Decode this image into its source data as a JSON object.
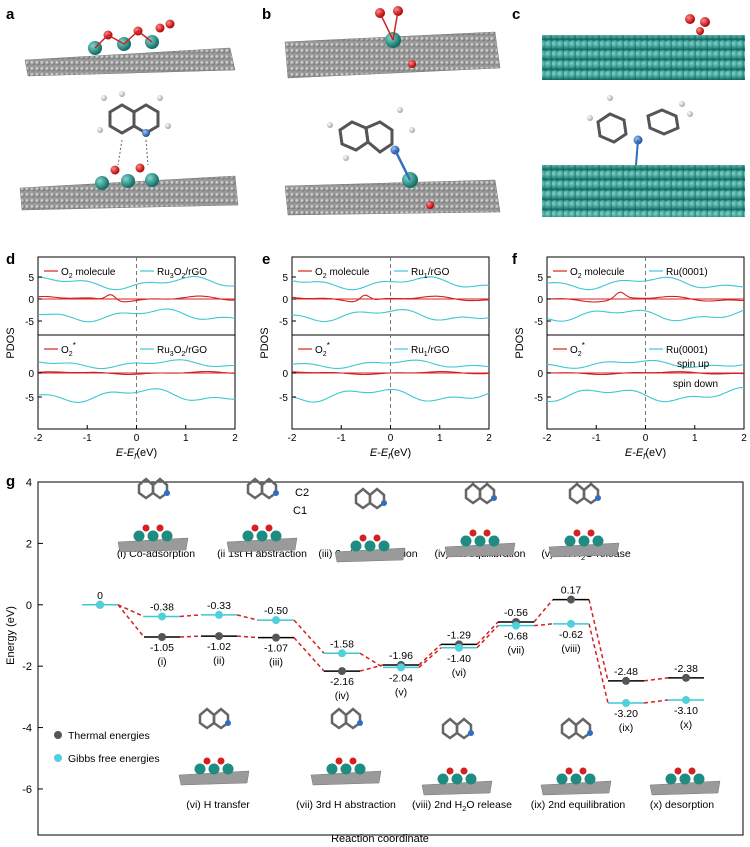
{
  "panel_labels": [
    "a",
    "b",
    "c",
    "d",
    "e",
    "f",
    "g"
  ],
  "colors": {
    "teal": "#1f8c82",
    "ru": "#1f8c82",
    "carbon": "#8c8c8c",
    "oxygen": "#d42020",
    "nitrogen": "#2f6fc0",
    "hydrogen": "#e8e8e8",
    "red_line": "#d42020",
    "cyan_line": "#3cc8d4",
    "thermal": "#555555",
    "gibbs": "#4fd0dc"
  },
  "pdos": [
    {
      "id": "d",
      "ylabel": "PDOS",
      "xlabel_main": "E-E",
      "xlabel_sub": "f",
      "xlabel_unit": "(eV)",
      "xticks": [
        "-2",
        "-1",
        "0",
        "1",
        "2"
      ],
      "yticks_top": [
        "5",
        "0",
        "-5"
      ],
      "yticks_bottom": [
        "0",
        "-5"
      ],
      "legend_top": {
        "red": "O",
        "red_sub": "2",
        "red_rest": " molecule",
        "cyan": "Ru",
        "cyan_sub1": "3",
        "cyan_mid": "O",
        "cyan_sub2": "2",
        "cyan_rest": "/rGO"
      },
      "legend_bottom": {
        "red": "O",
        "red_sub": "2",
        "red_sup": "*",
        "cyan": "Ru",
        "cyan_sub1": "3",
        "cyan_mid": "O",
        "cyan_sub2": "2",
        "cyan_rest": "/rGO"
      }
    },
    {
      "id": "e",
      "ylabel": "PDOS",
      "xlabel_main": "E-E",
      "xlabel_sub": "f",
      "xlabel_unit": "(eV)",
      "xticks": [
        "-2",
        "-1",
        "0",
        "1",
        "2"
      ],
      "yticks_top": [
        "5",
        "0",
        "-5"
      ],
      "yticks_bottom": [
        "0",
        "-5"
      ],
      "legend_top": {
        "red": "O",
        "red_sub": "2",
        "red_rest": " molecule",
        "cyan": "Ru",
        "cyan_sub1": "1",
        "cyan_mid": "",
        "cyan_sub2": "",
        "cyan_rest": "/rGO"
      },
      "legend_bottom": {
        "red": "O",
        "red_sub": "2",
        "red_sup": "*",
        "cyan": "Ru",
        "cyan_sub1": "1",
        "cyan_mid": "",
        "cyan_sub2": "",
        "cyan_rest": "/rGO"
      }
    },
    {
      "id": "f",
      "ylabel": "PDOS",
      "xlabel_main": "E-E",
      "xlabel_sub": "f",
      "xlabel_unit": "(eV)",
      "xticks": [
        "-2",
        "-1",
        "0",
        "1",
        "2"
      ],
      "yticks_top": [
        "5",
        "0",
        "-5"
      ],
      "yticks_bottom": [
        "0",
        "-5"
      ],
      "legend_top": {
        "red": "O",
        "red_sub": "2",
        "red_rest": " molecule",
        "cyan": "Ru(0001)",
        "cyan_sub1": "",
        "cyan_mid": "",
        "cyan_sub2": "",
        "cyan_rest": ""
      },
      "legend_bottom": {
        "red": "O",
        "red_sub": "2",
        "red_sup": "*",
        "cyan": "Ru(0001)",
        "cyan_sub1": "",
        "cyan_mid": "",
        "cyan_sub2": "",
        "cyan_rest": ""
      },
      "spin_labels": [
        "spin up",
        "spin down"
      ]
    }
  ],
  "chart_data": {
    "type": "line",
    "ylabel": "Energy (eV)",
    "xlabel": "Reaction coordinate",
    "ylim": [
      -7.5,
      4
    ],
    "yticks": [
      4,
      2,
      0,
      -2,
      -4,
      -6
    ],
    "states": [
      {
        "label": "",
        "thermal": 0,
        "gibbs": 0,
        "thermal_label": "0",
        "gibbs_label": ""
      },
      {
        "label": "(i)",
        "thermal": -1.05,
        "gibbs": -0.38,
        "thermal_label": "-1.05",
        "gibbs_label": "-0.38"
      },
      {
        "label": "(ii)",
        "thermal": -1.02,
        "gibbs": -0.33,
        "thermal_label": "-1.02",
        "gibbs_label": "-0.33"
      },
      {
        "label": "(iii)",
        "thermal": -1.07,
        "gibbs": -0.5,
        "thermal_label": "-1.07",
        "gibbs_label": "-0.50"
      },
      {
        "label": "(iv)",
        "thermal": -2.16,
        "gibbs": -1.58,
        "thermal_label": "-2.16",
        "gibbs_label": "-1.58"
      },
      {
        "label": "(v)",
        "thermal": -1.96,
        "gibbs": -2.04,
        "thermal_label": "-1.96",
        "gibbs_label": "-2.04"
      },
      {
        "label": "(vi)",
        "thermal": -1.29,
        "gibbs": -1.4,
        "thermal_label": "-1.29",
        "gibbs_label": "-1.40"
      },
      {
        "label": "(vii)",
        "thermal": -0.56,
        "gibbs": -0.68,
        "thermal_label": "-0.56",
        "gibbs_label": "-0.68"
      },
      {
        "label": "(viii)",
        "thermal": 0.17,
        "gibbs": -0.62,
        "thermal_label": "0.17",
        "gibbs_label": "-0.62"
      },
      {
        "label": "(ix)",
        "thermal": -2.48,
        "gibbs": -3.2,
        "thermal_label": "-2.48",
        "gibbs_label": "-3.20"
      },
      {
        "label": "(x)",
        "thermal": -2.38,
        "gibbs": -3.1,
        "thermal_label": "-2.38",
        "gibbs_label": "-3.10"
      }
    ],
    "legend": [
      "Thermal energies",
      "Gibbs free energies"
    ],
    "step_captions_top": [
      {
        "pre": "(i) Co-adsorption",
        "sub": "",
        "post": ""
      },
      {
        "pre": "(ii 1st H abstraction",
        "sub": "",
        "post": ""
      },
      {
        "pre": "(iii) 2nd H abstraction",
        "sub": "",
        "post": ""
      },
      {
        "pre": "(iv) 1st equilibration",
        "sub": "",
        "post": ""
      },
      {
        "pre": "(v) 1st H",
        "sub": "2",
        "post": "O release"
      }
    ],
    "step_captions_bottom": [
      {
        "pre": "(vi) H transfer",
        "sub": "",
        "post": ""
      },
      {
        "pre": "(vii) 3rd H abstraction",
        "sub": "",
        "post": ""
      },
      {
        "pre": "(viii) 2nd H",
        "sub": "2",
        "post": "O release"
      },
      {
        "pre": "(ix) 2nd equilibration",
        "sub": "",
        "post": ""
      },
      {
        "pre": "(x) desorption",
        "sub": "",
        "post": ""
      }
    ],
    "atom_labels": [
      "C2",
      "C1"
    ]
  }
}
